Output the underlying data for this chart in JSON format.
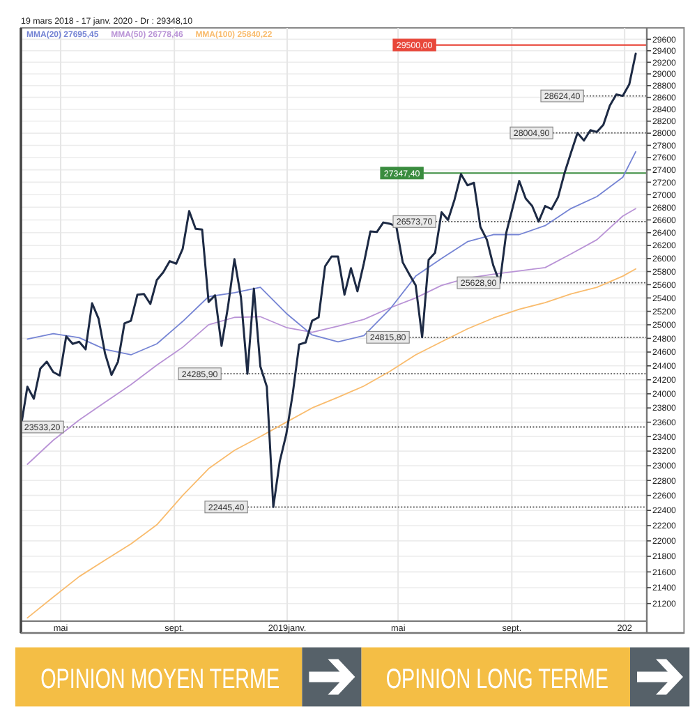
{
  "chart_data": {
    "type": "line",
    "title": "19 mars 2018 - 17 janv. 2020 - Dr : 29348,10",
    "x": [
      "2018-03-19",
      "2018-03-26",
      "2018-04-02",
      "2018-04-09",
      "2018-04-16",
      "2018-04-23",
      "2018-04-30",
      "2018-05-07",
      "2018-05-14",
      "2018-05-21",
      "2018-05-28",
      "2018-06-04",
      "2018-06-11",
      "2018-06-18",
      "2018-06-25",
      "2018-07-02",
      "2018-07-09",
      "2018-07-16",
      "2018-07-23",
      "2018-07-30",
      "2018-08-06",
      "2018-08-13",
      "2018-08-20",
      "2018-08-27",
      "2018-09-03",
      "2018-09-10",
      "2018-09-17",
      "2018-09-24",
      "2018-10-01",
      "2018-10-08",
      "2018-10-15",
      "2018-10-22",
      "2018-10-29",
      "2018-11-05",
      "2018-11-12",
      "2018-11-19",
      "2018-11-26",
      "2018-12-03",
      "2018-12-10",
      "2018-12-17",
      "2018-12-24",
      "2018-12-31",
      "2019-01-07",
      "2019-01-14",
      "2019-01-21",
      "2019-01-28",
      "2019-02-04",
      "2019-02-11",
      "2019-02-18",
      "2019-02-25",
      "2019-03-04",
      "2019-03-11",
      "2019-03-18",
      "2019-03-25",
      "2019-04-01",
      "2019-04-08",
      "2019-04-15",
      "2019-04-22",
      "2019-04-29",
      "2019-05-06",
      "2019-05-13",
      "2019-05-20",
      "2019-05-27",
      "2019-06-03",
      "2019-06-10",
      "2019-06-17",
      "2019-06-24",
      "2019-07-01",
      "2019-07-08",
      "2019-07-15",
      "2019-07-22",
      "2019-07-29",
      "2019-08-05",
      "2019-08-12",
      "2019-08-19",
      "2019-08-26",
      "2019-09-02",
      "2019-09-09",
      "2019-09-16",
      "2019-09-23",
      "2019-09-30",
      "2019-10-07",
      "2019-10-14",
      "2019-10-21",
      "2019-10-28",
      "2019-11-04",
      "2019-11-11",
      "2019-11-18",
      "2019-11-25",
      "2019-12-02",
      "2019-12-09",
      "2019-12-16",
      "2019-12-23",
      "2019-12-30",
      "2020-01-06",
      "2020-01-13"
    ],
    "xlim": [
      "2018-03-19",
      "2020-01-25"
    ],
    "xticks": [
      {
        "value": "2018-05-01",
        "label": "mai"
      },
      {
        "value": "2018-09-01",
        "label": "sept."
      },
      {
        "value": "2019-01-01",
        "label": "2019janv."
      },
      {
        "value": "2019-05-01",
        "label": "mai"
      },
      {
        "value": "2019-09-01",
        "label": "sept."
      },
      {
        "value": "2020-01-01",
        "label": "202"
      }
    ],
    "ylim": [
      20980,
      29800
    ],
    "yticks": [
      21200,
      21400,
      21600,
      21800,
      22000,
      22200,
      22400,
      22600,
      22800,
      23000,
      23200,
      23400,
      23600,
      23800,
      24000,
      24200,
      24400,
      24600,
      24800,
      25000,
      25200,
      25400,
      25600,
      25800,
      26000,
      26200,
      26400,
      26600,
      26800,
      27000,
      27200,
      27400,
      27600,
      27800,
      28000,
      28200,
      28400,
      28600,
      28800,
      29000,
      29200,
      29400,
      29600
    ],
    "log": true,
    "grid": true,
    "legend": "top left",
    "series": [
      {
        "color": "#1d2a44",
        "values": [
          23533.2,
          24100,
          23930,
          24360,
          24460,
          24310,
          24260,
          24830,
          24720,
          24750,
          24640,
          25320,
          25090,
          24580,
          24270,
          24460,
          25020,
          25060,
          25450,
          25460,
          25310,
          25670,
          25790,
          25960,
          25920,
          26150,
          26740,
          26460,
          26450,
          25340,
          25440,
          24690,
          25270,
          25990,
          25410,
          24285.9,
          25540,
          24390,
          24100,
          22445.4,
          23060,
          23430,
          24000,
          24710,
          24740,
          25060,
          25110,
          25880,
          26030,
          26030,
          25450,
          25850,
          25500,
          25930,
          26420,
          26410,
          26560,
          26540,
          26500,
          25940,
          25760,
          25590,
          24815.8,
          25980,
          26090,
          26720,
          26600,
          26920,
          27330,
          27150,
          27190,
          26490,
          26290,
          25890,
          25628.9,
          26400,
          26800,
          27220,
          26940,
          26820,
          26573.7,
          26820,
          26770,
          26960,
          27347.4,
          27680,
          28004.9,
          27880,
          28050,
          28020,
          28140,
          28460,
          28650,
          28624.4,
          28820,
          29348.1
        ]
      },
      {
        "name": "MMA(20) 27695,45",
        "color": "#7584d4",
        "x": [
          "2018-03-26",
          "2018-04-23",
          "2018-05-21",
          "2018-06-18",
          "2018-07-16",
          "2018-08-13",
          "2018-09-10",
          "2018-10-08",
          "2018-11-05",
          "2018-12-03",
          "2018-12-31",
          "2019-01-28",
          "2019-02-25",
          "2019-03-25",
          "2019-04-22",
          "2019-05-20",
          "2019-06-17",
          "2019-07-15",
          "2019-08-12",
          "2019-09-09",
          "2019-10-07",
          "2019-11-04",
          "2019-12-02",
          "2019-12-30",
          "2020-01-13"
        ],
        "values": [
          24790,
          24870,
          24810,
          24640,
          24560,
          24720,
          25050,
          25420,
          25480,
          25560,
          25170,
          24850,
          24750,
          24840,
          25230,
          25730,
          26000,
          26260,
          26370,
          26370,
          26510,
          26780,
          26970,
          27280,
          27695.45
        ]
      },
      {
        "name": "MMA(50) 26778,46",
        "color": "#b993d6",
        "x": [
          "2018-03-26",
          "2018-04-23",
          "2018-05-21",
          "2018-06-18",
          "2018-07-16",
          "2018-08-13",
          "2018-09-10",
          "2018-10-08",
          "2018-11-05",
          "2018-12-03",
          "2018-12-31",
          "2019-01-28",
          "2019-02-25",
          "2019-03-25",
          "2019-04-22",
          "2019-05-20",
          "2019-06-17",
          "2019-07-15",
          "2019-08-12",
          "2019-09-09",
          "2019-10-07",
          "2019-11-04",
          "2019-12-02",
          "2019-12-30",
          "2020-01-13"
        ],
        "values": [
          23020,
          23350,
          23630,
          23880,
          24130,
          24410,
          24670,
          25000,
          25110,
          25120,
          24960,
          24890,
          24980,
          25080,
          25250,
          25400,
          25590,
          25700,
          25760,
          25810,
          25860,
          26070,
          26290,
          26660,
          26778.46
        ]
      },
      {
        "name": "MMA(100) 25840,22",
        "color": "#f9bc6e",
        "x": [
          "2018-03-26",
          "2018-04-23",
          "2018-05-21",
          "2018-06-18",
          "2018-07-16",
          "2018-08-13",
          "2018-09-10",
          "2018-10-08",
          "2018-11-05",
          "2018-12-03",
          "2018-12-31",
          "2019-01-28",
          "2019-02-25",
          "2019-03-25",
          "2019-04-22",
          "2019-05-20",
          "2019-06-17",
          "2019-07-15",
          "2019-08-12",
          "2019-09-09",
          "2019-10-07",
          "2019-11-04",
          "2019-12-02",
          "2019-12-30",
          "2020-01-13"
        ],
        "values": [
          21020,
          21280,
          21540,
          21750,
          21960,
          22210,
          22600,
          22960,
          23210,
          23400,
          23600,
          23800,
          23950,
          24110,
          24320,
          24560,
          24750,
          24940,
          25100,
          25230,
          25330,
          25460,
          25560,
          25730,
          25840.22
        ]
      }
    ],
    "ref_lines": [
      {
        "axis": "y",
        "value": 29500,
        "label": "29500,00",
        "color": "#e8473a",
        "line_style": "solid"
      },
      {
        "axis": "y",
        "value": 28624.4,
        "label": "28624,40",
        "color": "#555555",
        "line_style": "dotted"
      },
      {
        "axis": "y",
        "value": 28004.9,
        "label": "28004,90",
        "color": "#555555",
        "line_style": "dotted"
      },
      {
        "axis": "y",
        "value": 27347.4,
        "label": "27347,40",
        "color": "#3a8c3f",
        "line_style": "solid"
      },
      {
        "axis": "y",
        "value": 26573.7,
        "label": "26573,70",
        "color": "#555555",
        "line_style": "dotted"
      },
      {
        "axis": "y",
        "value": 25628.9,
        "label": "25628,90",
        "color": "#555555",
        "line_style": "dotted"
      },
      {
        "axis": "y",
        "value": 24815.8,
        "label": "24815,80",
        "color": "#555555",
        "line_style": "dotted"
      },
      {
        "axis": "y",
        "value": 24285.9,
        "label": "24285,90",
        "color": "#555555",
        "line_style": "dotted"
      },
      {
        "axis": "y",
        "value": 23533.2,
        "label": "23533,20",
        "color": "#555555",
        "line_style": "dotted"
      },
      {
        "axis": "y",
        "value": 22445.4,
        "label": "22445,40",
        "color": "#555555",
        "line_style": "dotted"
      }
    ],
    "annotations": [
      "OPINION MOYEN TERME",
      "OPINION LONG TERME"
    ]
  }
}
